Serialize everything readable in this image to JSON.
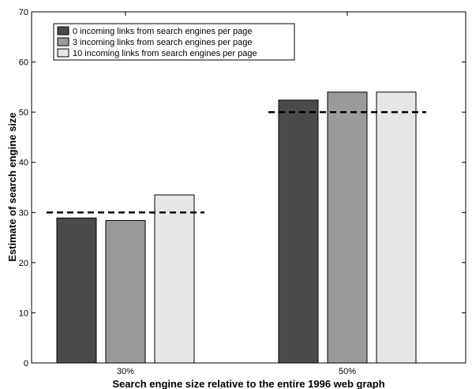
{
  "chart_data": {
    "type": "bar",
    "title": "",
    "xlabel": "Search engine size relative to the entire 1996 web graph",
    "ylabel": "Estimate of search engine size",
    "ylim": [
      0,
      70
    ],
    "yticks": [
      0,
      10,
      20,
      30,
      40,
      50,
      60,
      70
    ],
    "categories": [
      "30%",
      "50%"
    ],
    "series": [
      {
        "name": "0 incoming links from search engines per page",
        "color": "#4b4b4b",
        "values": [
          28.9,
          52.4
        ]
      },
      {
        "name": "3 incoming links from search engines per page",
        "color": "#9a9a9a",
        "values": [
          28.4,
          54.0
        ]
      },
      {
        "name": "10 incoming links from search engines per page",
        "color": "#e6e6e6",
        "values": [
          33.5,
          54.0
        ]
      }
    ],
    "reference_lines": [
      {
        "category": "30%",
        "value": 30,
        "style": "dashed"
      },
      {
        "category": "50%",
        "value": 50,
        "style": "dashed"
      }
    ],
    "legend_position": "top-left",
    "grid": false
  }
}
